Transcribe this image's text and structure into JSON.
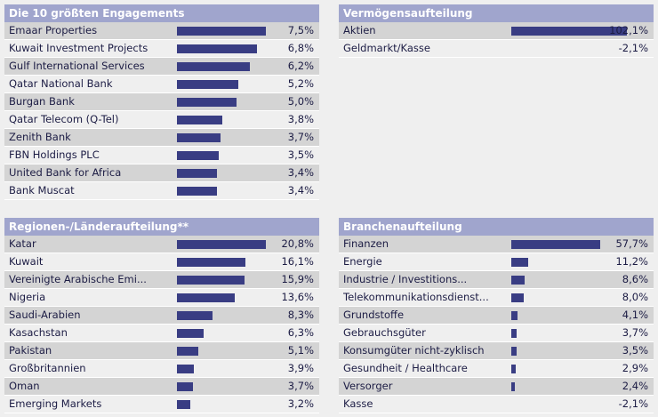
{
  "colors": {
    "header_bg": "#a0a5cd",
    "bar": "#393d83",
    "row_alt": "#d4d4d4",
    "row_base": "#efefef",
    "text": "#1c1c44"
  },
  "top_holdings": {
    "title": "Die 10 größten Engagements",
    "rows": [
      {
        "label": "Emaar Properties",
        "value": "7,5%",
        "pct": 7.5
      },
      {
        "label": "Kuwait Investment Projects",
        "value": "6,8%",
        "pct": 6.8
      },
      {
        "label": "Gulf International Services",
        "value": "6,2%",
        "pct": 6.2
      },
      {
        "label": "Qatar National Bank",
        "value": "5,2%",
        "pct": 5.2
      },
      {
        "label": "Burgan Bank",
        "value": "5,0%",
        "pct": 5.0
      },
      {
        "label": "Qatar Telecom (Q-Tel)",
        "value": "3,8%",
        "pct": 3.8
      },
      {
        "label": "Zenith Bank",
        "value": "3,7%",
        "pct": 3.7
      },
      {
        "label": "FBN Holdings PLC",
        "value": "3,5%",
        "pct": 3.5
      },
      {
        "label": "United Bank for Africa",
        "value": "3,4%",
        "pct": 3.4
      },
      {
        "label": "Bank Muscat",
        "value": "3,4%",
        "pct": 3.4
      }
    ]
  },
  "asset_allocation": {
    "title": "Vermögensaufteilung",
    "rows": [
      {
        "label": "Aktien",
        "value": "102,1%",
        "pct": 102.1
      },
      {
        "label": "Geldmarkt/Kasse",
        "value": "-2,1%",
        "pct": -2.1
      }
    ]
  },
  "regions": {
    "title": "Regionen-/Länderaufteilung**",
    "rows": [
      {
        "label": "Katar",
        "value": "20,8%",
        "pct": 20.8
      },
      {
        "label": "Kuwait",
        "value": "16,1%",
        "pct": 16.1
      },
      {
        "label": "Vereinigte Arabische Emi...",
        "value": "15,9%",
        "pct": 15.9
      },
      {
        "label": "Nigeria",
        "value": "13,6%",
        "pct": 13.6
      },
      {
        "label": "Saudi-Arabien",
        "value": "8,3%",
        "pct": 8.3
      },
      {
        "label": "Kasachstan",
        "value": "6,3%",
        "pct": 6.3
      },
      {
        "label": "Pakistan",
        "value": "5,1%",
        "pct": 5.1
      },
      {
        "label": "Großbritannien",
        "value": "3,9%",
        "pct": 3.9
      },
      {
        "label": "Oman",
        "value": "3,7%",
        "pct": 3.7
      },
      {
        "label": "Emerging Markets",
        "value": "3,2%",
        "pct": 3.2
      }
    ]
  },
  "sectors": {
    "title": "Branchenaufteilung",
    "rows": [
      {
        "label": "Finanzen",
        "value": "57,7%",
        "pct": 57.7
      },
      {
        "label": "Energie",
        "value": "11,2%",
        "pct": 11.2
      },
      {
        "label": "Industrie / Investitions...",
        "value": "8,6%",
        "pct": 8.6
      },
      {
        "label": "Telekommunikationsdienst...",
        "value": "8,0%",
        "pct": 8.0
      },
      {
        "label": "Grundstoffe",
        "value": "4,1%",
        "pct": 4.1
      },
      {
        "label": "Gebrauchsgüter",
        "value": "3,7%",
        "pct": 3.7
      },
      {
        "label": "Konsumgüter nicht-zyklisch",
        "value": "3,5%",
        "pct": 3.5
      },
      {
        "label": "Gesundheit / Healthcare",
        "value": "2,9%",
        "pct": 2.9
      },
      {
        "label": "Versorger",
        "value": "2,4%",
        "pct": 2.4
      },
      {
        "label": "Kasse",
        "value": "-2,1%",
        "pct": -2.1
      }
    ]
  }
}
